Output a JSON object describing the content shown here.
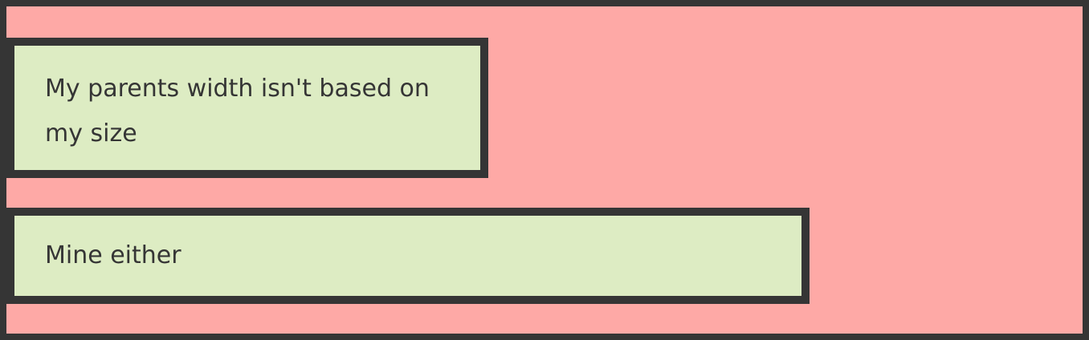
{
  "boxes": [
    {
      "text": "My parents width isn't based on my size"
    },
    {
      "text": "Mine either"
    }
  ],
  "colors": {
    "parent_background": "#fea9a6",
    "child_background": "#ddecc3",
    "border": "#353535",
    "text": "#353535"
  }
}
